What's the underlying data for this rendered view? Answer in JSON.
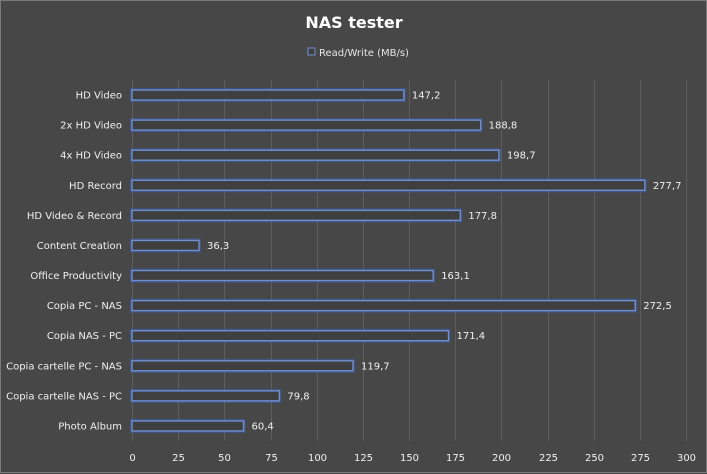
{
  "chart_data": {
    "type": "bar",
    "orientation": "horizontal",
    "title": "NAS tester",
    "legend": [
      "Read/Write (MB/s)"
    ],
    "legend_position": "top",
    "categories": [
      "HD Video",
      "2x HD Video",
      "4x HD Video",
      "HD Record",
      "HD Video & Record",
      "Content Creation",
      "Office Productivity",
      "Copia PC - NAS",
      "Copia NAS - PC",
      "Copia cartelle PC - NAS",
      "Copia cartelle NAS - PC",
      "Photo Album"
    ],
    "series": [
      {
        "name": "Read/Write (MB/s)",
        "values": [
          147.2,
          188.8,
          198.7,
          277.7,
          177.8,
          36.3,
          163.1,
          272.5,
          171.4,
          119.7,
          79.8,
          60.4
        ],
        "labels": [
          "147,2",
          "188,8",
          "198,7",
          "277,7",
          "177,8",
          "36,3",
          "163,1",
          "272,5",
          "171,4",
          "119,7",
          "79,8",
          "60,4"
        ]
      }
    ],
    "xlim": [
      0,
      300
    ],
    "xticks": [
      0,
      25,
      50,
      75,
      100,
      125,
      150,
      175,
      200,
      225,
      250,
      275,
      300
    ],
    "xlabel": "",
    "ylabel": "",
    "grid": true,
    "colors": {
      "bar_outline": "#6f8fd0",
      "bar_fill": "#3f3f3f",
      "grid": "#5e5e5e",
      "background": "#474747"
    }
  }
}
